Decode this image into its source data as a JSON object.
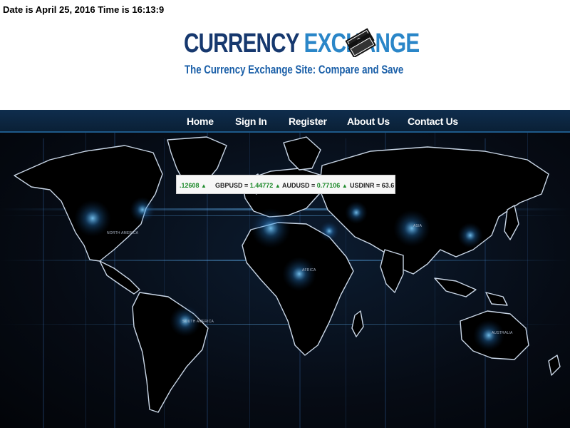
{
  "header": {
    "datetime": "Date is April 25, 2016 Time is 16:13:9"
  },
  "logo": {
    "word1": "CURRENCY",
    "word2": "EXCHANGE",
    "tagline": "The Currency Exchange Site: Compare and Save",
    "icon": "money-stack-icon"
  },
  "nav": {
    "items": [
      {
        "label": "Home"
      },
      {
        "label": "Sign In"
      },
      {
        "label": "Register"
      },
      {
        "label": "About Us"
      },
      {
        "label": "Contact Us"
      }
    ]
  },
  "ticker": {
    "items": [
      {
        "pair": "",
        "value": ".12608",
        "trend": "▲"
      },
      {
        "pair": "GBPUSD =",
        "value": "1.44772",
        "trend": "▲"
      },
      {
        "pair": "AUDUSD =",
        "value": "0.77106",
        "trend": "▲"
      },
      {
        "pair": "USDINR =",
        "value": "63.6",
        "trend": ""
      }
    ]
  },
  "map": {
    "labels": {
      "north_america": "NORTH AMERICA",
      "south_america": "SOUTH AMERICA",
      "africa": "AFRICA",
      "asia": "ASIA",
      "australia": "AUSTRALIA"
    }
  },
  "colors": {
    "logo_dark": "#16386e",
    "logo_light": "#2a86c8",
    "nav_bg": "#0f2d4d",
    "ticker_up": "#1d8a2a"
  }
}
